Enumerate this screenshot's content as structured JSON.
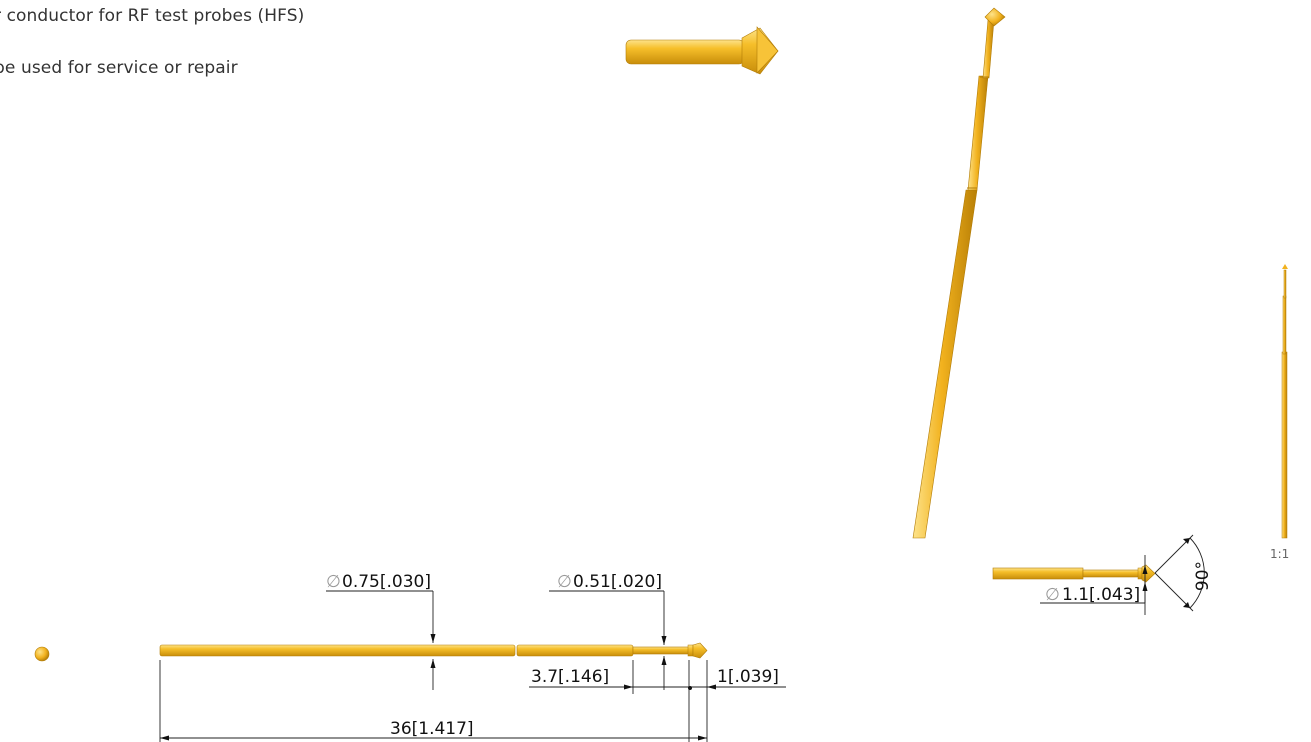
{
  "description": {
    "line1": "r conductor for RF test probes (HFS)",
    "line2": "be used for service or repair"
  },
  "dimensions": {
    "dia_shaft": "0.75[.030]",
    "dia_neck": "0.51[.020]",
    "dia_head": "1.1[.043]",
    "neck_length": "3.7[.146]",
    "tip_length": "1[.039]",
    "total_length": "36[1.417]",
    "tip_angle": "90°",
    "diameter_symbol": "∅"
  },
  "scale_label": "1:1",
  "colors": {
    "gold": "#f2b21e",
    "gold_light": "#fbd86a",
    "gold_dark": "#b27c07"
  }
}
